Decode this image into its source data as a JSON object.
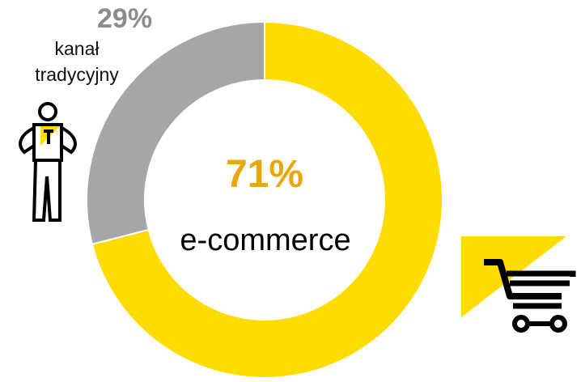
{
  "chart_data": {
    "type": "pie",
    "donut": true,
    "slices": [
      {
        "label": "e-commerce",
        "value": 71,
        "value_label": "71%",
        "color": "#ffdc00"
      },
      {
        "label": "kanał tradycyjny",
        "value": 29,
        "value_label": "29%",
        "color": "#a6a6a6"
      }
    ]
  },
  "icons": {
    "person": "worker-person-icon",
    "cart": "shopping-cart-icon"
  }
}
